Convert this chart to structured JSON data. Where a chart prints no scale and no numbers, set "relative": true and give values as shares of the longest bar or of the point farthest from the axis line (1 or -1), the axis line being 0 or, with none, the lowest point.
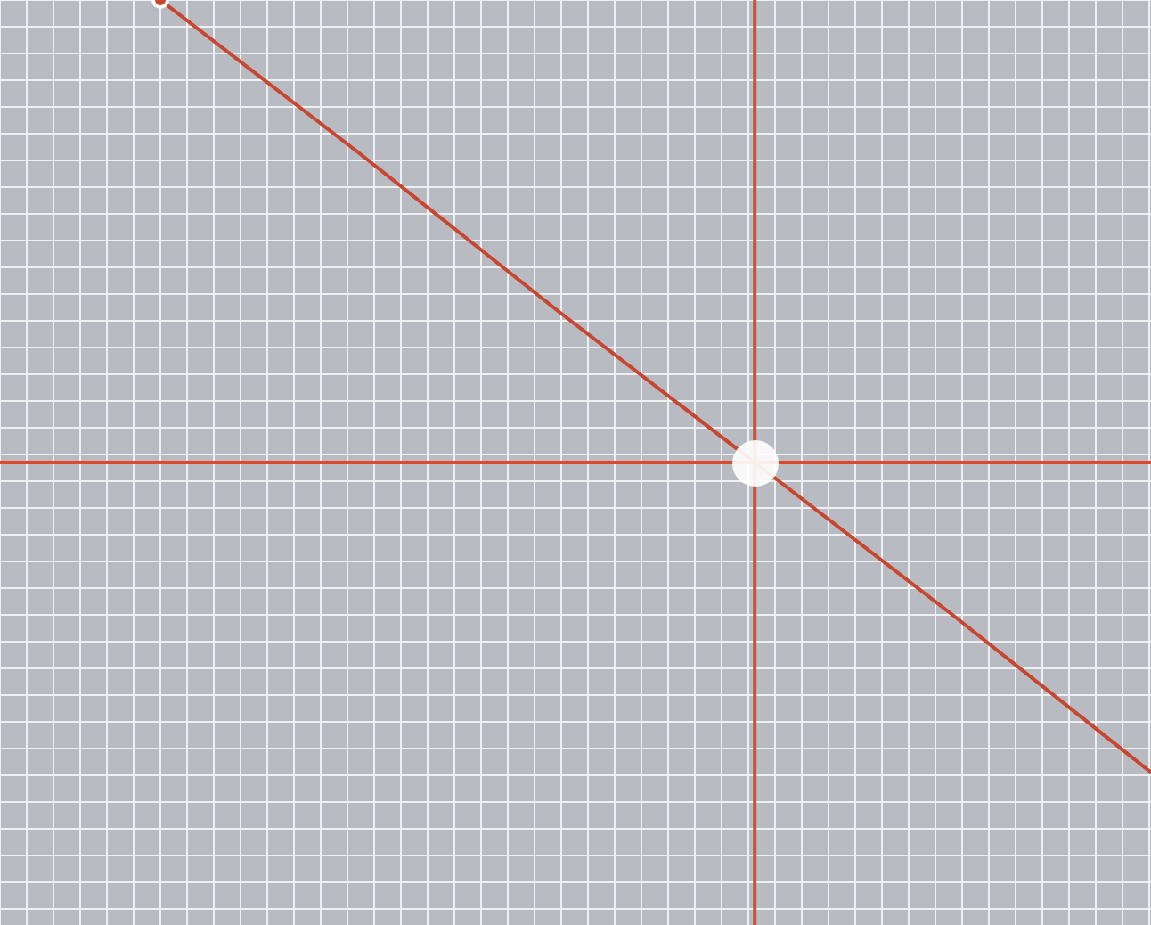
{
  "chart_data": {
    "type": "line",
    "relative": true,
    "categories": [
      null,
      null,
      null,
      null,
      null,
      null
    ],
    "grid": true,
    "ref_lines": [
      {
        "axis": "y",
        "value": 0,
        "color": "#e0482a"
      }
    ],
    "marker": "none",
    "line_style": "solid",
    "series": [
      {
        "color": "#c8452e",
        "values": [
          1,
          0.67,
          0.33,
          0,
          -0.33,
          -0.67
        ]
      }
    ]
  }
}
